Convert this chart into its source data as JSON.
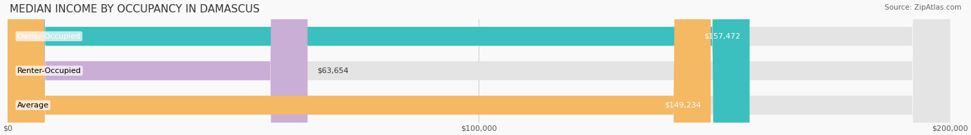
{
  "title": "MEDIAN INCOME BY OCCUPANCY IN DAMASCUS",
  "source": "Source: ZipAtlas.com",
  "categories": [
    "Owner-Occupied",
    "Renter-Occupied",
    "Average"
  ],
  "values": [
    157472,
    63654,
    149234
  ],
  "labels": [
    "$157,472",
    "$63,654",
    "$149,234"
  ],
  "bar_colors": [
    "#3bbfbf",
    "#c9aed6",
    "#f5b863"
  ],
  "bar_edge_colors": [
    "#3bbfbf",
    "#c9aed6",
    "#f5b863"
  ],
  "background_color": "#f0f0f0",
  "bar_bg_color": "#e8e8e8",
  "xlim": [
    0,
    200000
  ],
  "xticks": [
    0,
    100000,
    200000
  ],
  "xticklabels": [
    "$0",
    "$100,000",
    "$200,000"
  ],
  "label_fontsize": 8,
  "title_fontsize": 11,
  "bar_height": 0.55
}
